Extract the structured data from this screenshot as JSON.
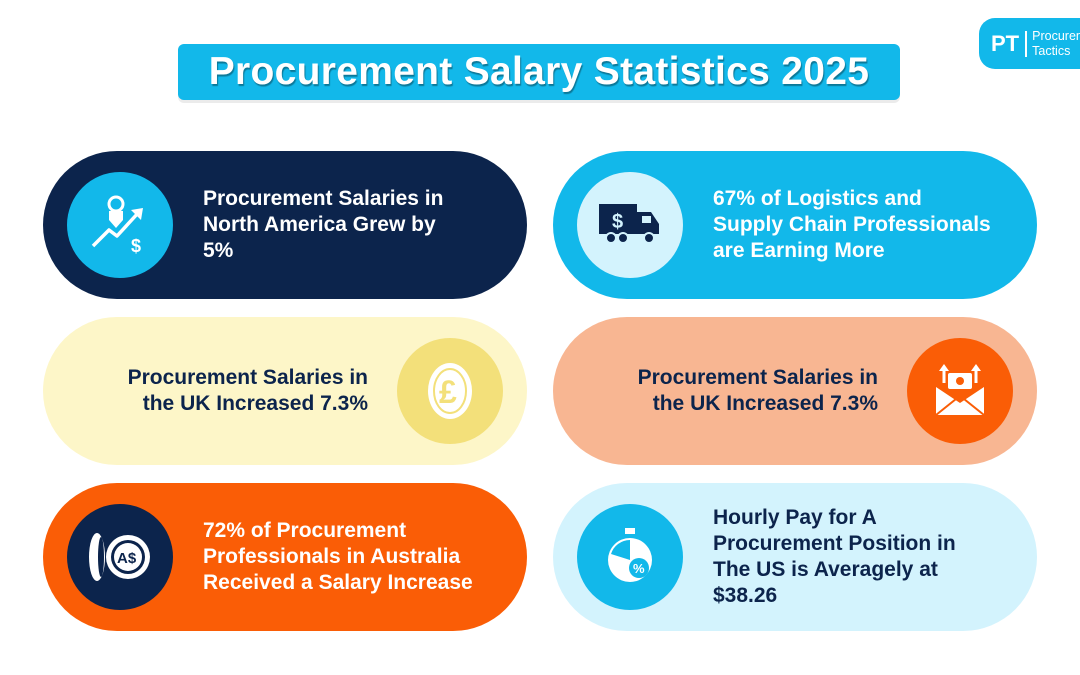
{
  "title": "Procurement Salary Statistics 2025",
  "logo": {
    "mark": "PT",
    "line1": "Procurement",
    "line2": "Tactics"
  },
  "cards": [
    {
      "lines": [
        "Procurement Salaries in",
        "North America Grew by",
        "5%"
      ],
      "icon": "salary-growth-icon",
      "background": "#0c244c",
      "icon_circle": "#12b8ea",
      "text_color": "#ffffff"
    },
    {
      "lines": [
        "67% of Logistics and",
        "Supply Chain Professionals",
        "are Earning More"
      ],
      "icon": "money-truck-icon",
      "background": "#12b8ea",
      "icon_circle": "#d3f3fd",
      "text_color": "#ffffff"
    },
    {
      "lines": [
        "Procurement Salaries in",
        "the UK Increased 7.3%"
      ],
      "icon": "pound-coin-icon",
      "background": "#fdf6c8",
      "icon_circle": "#f3e07a",
      "text_color": "#0c244c"
    },
    {
      "lines": [
        "Procurement Salaries in",
        "the UK Increased 7.3%"
      ],
      "icon": "money-envelope-icon",
      "background": "#f8b692",
      "icon_circle": "#fa5d06",
      "text_color": "#0c244c"
    },
    {
      "lines": [
        "72% of Procurement",
        "Professionals in Australia",
        "Received a Salary Increase"
      ],
      "icon": "aud-coins-icon",
      "background": "#fa5d06",
      "icon_circle": "#0c244c",
      "text_color": "#ffffff"
    },
    {
      "lines": [
        "Hourly Pay for A",
        "Procurement Position in",
        "The US is Averagely at",
        "$38.26"
      ],
      "icon": "stopwatch-percent-icon",
      "background": "#d3f3fd",
      "icon_circle": "#12b8ea",
      "text_color": "#0c244c"
    }
  ]
}
